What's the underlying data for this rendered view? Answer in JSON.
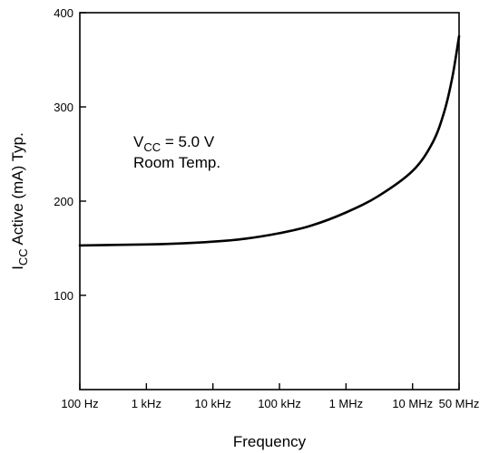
{
  "chart_data": {
    "type": "line",
    "title": "",
    "xlabel": "Frequency",
    "ylabel": {
      "main": "I",
      "sub": "CC",
      "rest": " Active (mA) Typ."
    },
    "x_scale": "log",
    "xlim_hz": [
      100,
      50000000
    ],
    "ylim": [
      0,
      400
    ],
    "x_ticks": [
      {
        "value": 100,
        "label": "100 Hz"
      },
      {
        "value": 1000,
        "label": "1 kHz"
      },
      {
        "value": 10000,
        "label": "10 kHz"
      },
      {
        "value": 100000,
        "label": "100 kHz"
      },
      {
        "value": 1000000,
        "label": "1 MHz"
      },
      {
        "value": 10000000,
        "label": "10 MHz"
      },
      {
        "value": 50000000,
        "label": "50 MHz"
      }
    ],
    "y_ticks": [
      {
        "value": 100,
        "label": "100"
      },
      {
        "value": 200,
        "label": "200"
      },
      {
        "value": 300,
        "label": "300"
      },
      {
        "value": 400,
        "label": "400"
      }
    ],
    "grid": false,
    "legend": "none",
    "series": [
      {
        "x": [
          100,
          1000,
          3000,
          10000,
          30000,
          100000,
          300000,
          1000000,
          3000000,
          10000000,
          20000000,
          30000000,
          40000000,
          50000000
        ],
        "y": [
          153,
          154,
          155,
          157,
          160,
          166,
          174,
          188,
          205,
          232,
          262,
          295,
          333,
          375
        ]
      }
    ],
    "annotation": {
      "line1_main": "V",
      "line1_sub": "CC",
      "line1_rest": " = 5.0 V",
      "line2": "Room Temp."
    }
  }
}
